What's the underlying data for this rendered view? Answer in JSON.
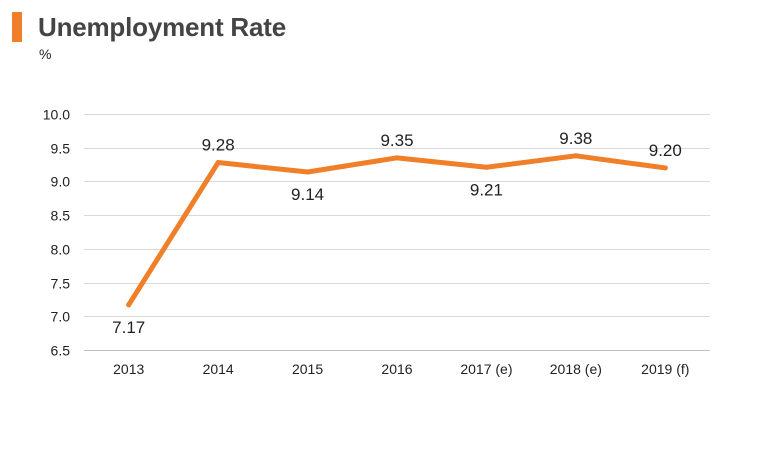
{
  "title": "Unemployment Rate",
  "unit": "%",
  "colors": {
    "accent": "#f07f2a",
    "line": "#f07f2a",
    "grid": "#d9d9d9",
    "text": "#222222",
    "title": "#444444"
  },
  "chart_data": {
    "type": "line",
    "title": "Unemployment Rate",
    "ylabel": "%",
    "xlabel": "",
    "categories": [
      "2013",
      "2014",
      "2015",
      "2016",
      "2017 (e)",
      "2018 (e)",
      "2019 (f)"
    ],
    "series": [
      {
        "values": [
          7.17,
          9.28,
          9.14,
          9.35,
          9.21,
          9.38,
          9.2
        ],
        "labels": [
          "7.17",
          "9.28",
          "9.14",
          "9.35",
          "9.21",
          "9.38",
          "9.20"
        ],
        "color": "#f07f2a"
      }
    ],
    "ylim": [
      6.5,
      10.0
    ],
    "yticks": [
      6.5,
      7.0,
      7.5,
      8.0,
      8.5,
      9.0,
      9.5,
      10.0
    ],
    "ytick_labels": [
      "6.5",
      "7.0",
      "7.5",
      "8.0",
      "8.5",
      "9.0",
      "9.5",
      "10.0"
    ],
    "grid": true,
    "legend": false,
    "data_labels": true
  }
}
